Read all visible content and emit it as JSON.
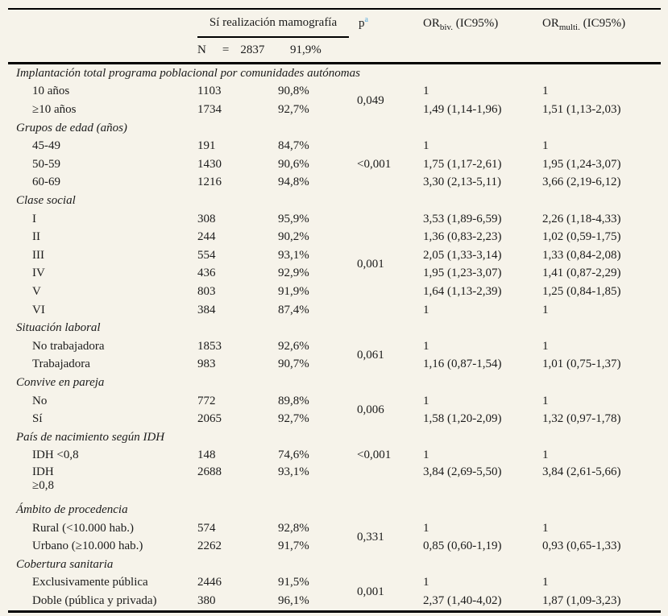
{
  "page": {
    "background": "#f6f3ea",
    "text_color": "#1b1b1b",
    "rule_color": "#000000",
    "footnote_blue": "#55a9dc"
  },
  "header": {
    "mamografia_label": "Sí realización mamografía",
    "p_label": "p",
    "p_sup": "a",
    "or_biv": {
      "prefix": "OR",
      "sub": "biv.",
      "suffix": " (IC95%)"
    },
    "or_multi": {
      "prefix": "OR",
      "sub": "multi.",
      "suffix": " (IC95%)"
    },
    "n_row": {
      "n_label": "N",
      "eq": "=",
      "n_value": "2837",
      "pct": "91,9%"
    }
  },
  "groups": [
    {
      "section": "Implantación total programa poblacional por comunidades autónomas",
      "p": "0,049",
      "p_align": "middle",
      "rows": [
        {
          "label": "10 años",
          "n": "1103",
          "pct": "90,8%",
          "or_biv": "1",
          "or_multi": "1"
        },
        {
          "label": "≥10 años",
          "n": "1734",
          "pct": "92,7%",
          "or_biv": "1,49 (1,14-1,96)",
          "or_multi": "1,51 (1,13-2,03)"
        }
      ]
    },
    {
      "section": "Grupos de edad (años)",
      "p": "<0,001",
      "p_align": "middle",
      "rows": [
        {
          "label": "45-49",
          "n": "191",
          "pct": "84,7%",
          "or_biv": "1",
          "or_multi": "1"
        },
        {
          "label": "50-59",
          "n": "1430",
          "pct": "90,6%",
          "or_biv": "1,75 (1,17-2,61)",
          "or_multi": "1,95 (1,24-3,07)"
        },
        {
          "label": "60-69",
          "n": "1216",
          "pct": "94,8%",
          "or_biv": "3,30 (2,13-5,11)",
          "or_multi": "3,66 (2,19-6,12)"
        }
      ]
    },
    {
      "section": "Clase social",
      "p": "0,001",
      "p_align": "middle",
      "rows": [
        {
          "label": "I",
          "n": "308",
          "pct": "95,9%",
          "or_biv": "3,53 (1,89-6,59)",
          "or_multi": "2,26 (1,18-4,33)"
        },
        {
          "label": "II",
          "n": "244",
          "pct": "90,2%",
          "or_biv": "1,36 (0,83-2,23)",
          "or_multi": "1,02 (0,59-1,75)"
        },
        {
          "label": "III",
          "n": "554",
          "pct": "93,1%",
          "or_biv": "2,05 (1,33-3,14)",
          "or_multi": "1,33 (0,84-2,08)"
        },
        {
          "label": "IV",
          "n": "436",
          "pct": "92,9%",
          "or_biv": "1,95 (1,23-3,07)",
          "or_multi": "1,41 (0,87-2,29)"
        },
        {
          "label": "V",
          "n": "803",
          "pct": "91,9%",
          "or_biv": "1,64 (1,13-2,39)",
          "or_multi": "1,25 (0,84-1,85)"
        },
        {
          "label": "VI",
          "n": "384",
          "pct": "87,4%",
          "or_biv": "1",
          "or_multi": "1"
        }
      ]
    },
    {
      "section": "Situación laboral",
      "p": "0,061",
      "p_align": "middle",
      "rows": [
        {
          "label": "No trabajadora",
          "n": "1853",
          "pct": "92,6%",
          "or_biv": "1",
          "or_multi": "1"
        },
        {
          "label": "Trabajadora",
          "n": "983",
          "pct": "90,7%",
          "or_biv": "1,16 (0,87-1,54)",
          "or_multi": "1,01 (0,75-1,37)"
        }
      ]
    },
    {
      "section": "Convive en pareja",
      "p": "0,006",
      "p_align": "middle",
      "rows": [
        {
          "label": "No",
          "n": "772",
          "pct": "89,8%",
          "or_biv": "1",
          "or_multi": "1"
        },
        {
          "label": "Sí",
          "n": "2065",
          "pct": "92,7%",
          "or_biv": "1,58 (1,20-2,09)",
          "or_multi": "1,32 (0,97-1,78)"
        }
      ]
    },
    {
      "section": "País de nacimiento según IDH",
      "p": "<0,001",
      "p_align": "top",
      "rows": [
        {
          "label": "IDH <0,8",
          "n": "148",
          "pct": "74,6%",
          "or_biv": "1",
          "or_multi": "1"
        },
        {
          "label": "IDH\n≥0,8",
          "n": "2688",
          "pct": "93,1%",
          "or_biv": "3,84 (2,69-5,50)",
          "or_multi": "3,84 (2,61-5,66)",
          "two_line": true
        }
      ]
    },
    {
      "section": "Ámbito de procedencia",
      "p": "0,331",
      "p_align": "middle",
      "rows": [
        {
          "label": "Rural (<10.000 hab.)",
          "n": "574",
          "pct": "92,8%",
          "or_biv": "1",
          "or_multi": "1"
        },
        {
          "label": "Urbano (≥10.000 hab.)",
          "n": "2262",
          "pct": "91,7%",
          "or_biv": "0,85 (0,60-1,19)",
          "or_multi": "0,93 (0,65-1,33)"
        }
      ]
    },
    {
      "section": "Cobertura sanitaria",
      "p": "0,001",
      "p_align": "middle",
      "rows": [
        {
          "label": "Exclusivamente pública",
          "n": "2446",
          "pct": "91,5%",
          "or_biv": "1",
          "or_multi": "1"
        },
        {
          "label": "Doble (pública y privada)",
          "n": "380",
          "pct": "96,1%",
          "or_biv": "2,37 (1,40-4,02)",
          "or_multi": "1,87 (1,09-3,23)"
        }
      ]
    }
  ]
}
